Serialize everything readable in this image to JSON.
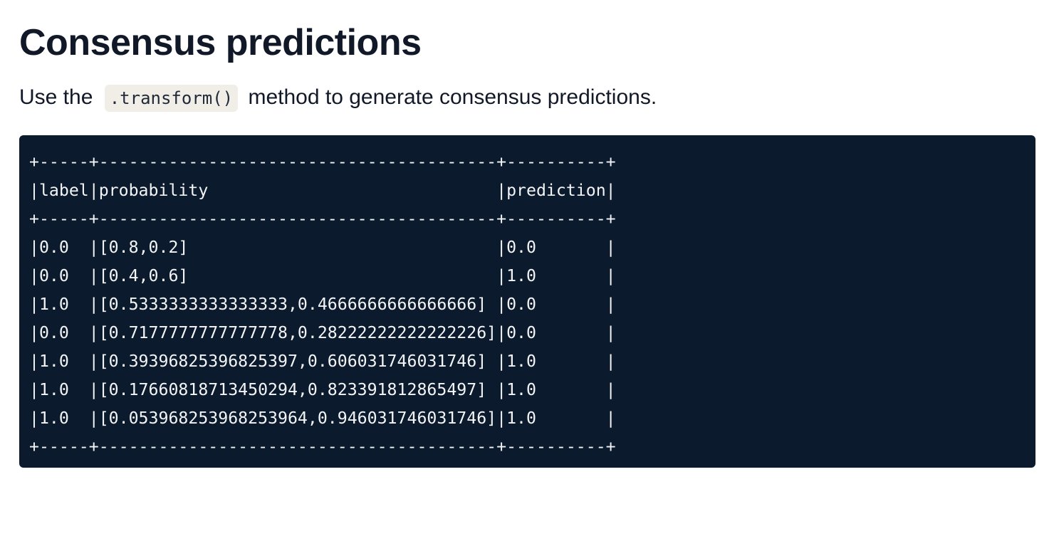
{
  "heading": "Consensus predictions",
  "intro": {
    "before": "Use the",
    "code": ".transform()",
    "after": "method to generate consensus predictions."
  },
  "output_table": {
    "lines": [
      "+-----+----------------------------------------+----------+",
      "|label|probability                             |prediction|",
      "+-----+----------------------------------------+----------+",
      "|0.0  |[0.8,0.2]                               |0.0       |",
      "|0.0  |[0.4,0.6]                               |1.0       |",
      "|1.0  |[0.5333333333333333,0.4666666666666666] |0.0       |",
      "|0.0  |[0.7177777777777778,0.28222222222222226]|0.0       |",
      "|1.0  |[0.39396825396825397,0.606031746031746] |1.0       |",
      "|1.0  |[0.17660818713450294,0.823391812865497] |1.0       |",
      "|1.0  |[0.053968253968253964,0.946031746031746]|1.0       |",
      "+-----+----------------------------------------+----------+"
    ]
  }
}
